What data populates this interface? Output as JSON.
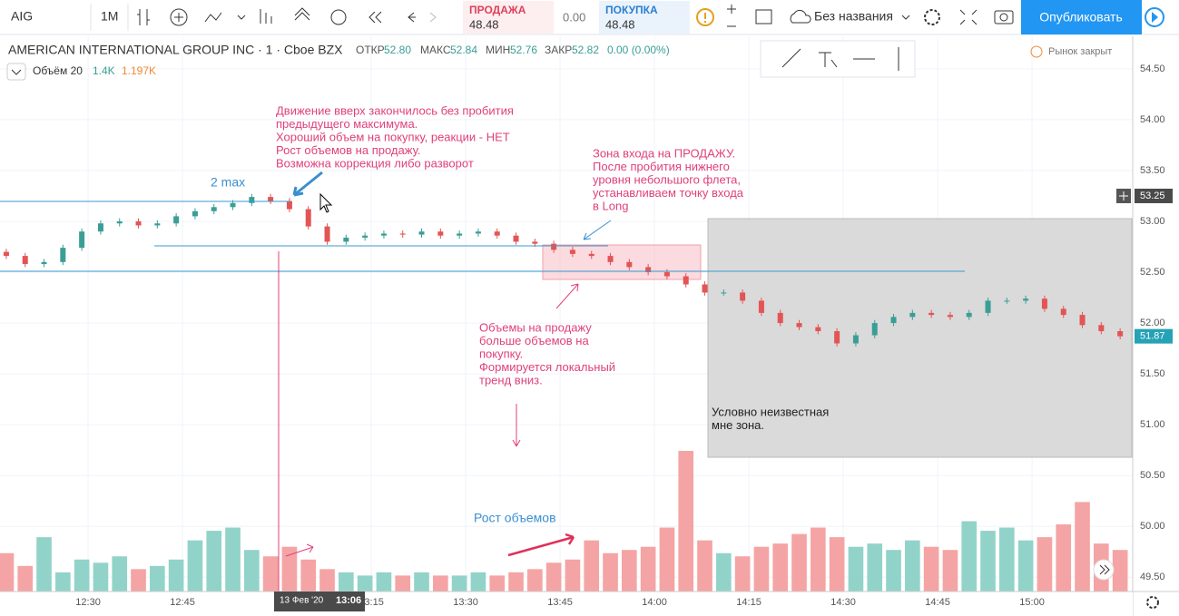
{
  "toolbar": {
    "symbol": "AIG",
    "interval": "1М",
    "sell_label": "ПРОДАЖА",
    "sell_price": "48.48",
    "spread": "0.00",
    "buy_label": "ПОКУПКА",
    "buy_price": "48.48",
    "layout_name": "Без названия",
    "publish": "Опубликовать"
  },
  "legend": {
    "instrument": "AMERICAN INTERNATIONAL GROUP INC · 1 · Cboe BZX",
    "open_label": "ОТКР",
    "open": "52.80",
    "high_label": "МАКС",
    "high": "52.84",
    "low_label": "МИН",
    "low": "52.76",
    "close_label": "ЗАКР",
    "close": "52.82",
    "change": "0.00 (0.00%)",
    "volume_label": "Объём 20",
    "volume_value": "1.4K",
    "volume_ma": "1.197K"
  },
  "market_status": "Рынок закрыт",
  "chart_data": {
    "type": "candlestick",
    "x": [
      737,
      740,
      743,
      746,
      749,
      752,
      755,
      758,
      761,
      764,
      767,
      770,
      773,
      776,
      779,
      782,
      785,
      788,
      791,
      794,
      797,
      800,
      803,
      806,
      809,
      812,
      815,
      818,
      821,
      824,
      827,
      830,
      833,
      836,
      839,
      842,
      845,
      848,
      851,
      854,
      857,
      860,
      863,
      866,
      869,
      872,
      875,
      878,
      881,
      884,
      887,
      890,
      893,
      896,
      899,
      902,
      905,
      908,
      911,
      914
    ],
    "open": [
      52.7,
      52.66,
      52.58,
      52.6,
      52.74,
      52.9,
      52.98,
      53.0,
      52.96,
      52.98,
      53.05,
      53.1,
      53.14,
      53.18,
      53.24,
      53.2,
      53.12,
      52.95,
      52.8,
      52.84,
      52.86,
      52.88,
      52.87,
      52.9,
      52.86,
      52.88,
      52.9,
      52.86,
      52.8,
      52.78,
      52.72,
      52.68,
      52.66,
      52.6,
      52.55,
      52.5,
      52.46,
      52.38,
      52.3,
      52.3,
      52.22,
      52.1,
      52.0,
      51.96,
      51.92,
      51.8,
      51.88,
      52.0,
      52.06,
      52.1,
      52.08,
      52.06,
      52.1,
      52.22,
      52.22,
      52.24,
      52.14,
      52.08,
      51.98,
      51.92
    ],
    "high": [
      52.73,
      52.69,
      52.63,
      52.77,
      52.93,
      53.01,
      53.03,
      53.03,
      53.01,
      53.08,
      53.13,
      53.17,
      53.21,
      53.27,
      53.27,
      53.23,
      53.15,
      52.98,
      52.87,
      52.89,
      52.91,
      52.91,
      52.93,
      52.93,
      52.91,
      52.93,
      52.93,
      52.89,
      52.83,
      52.81,
      52.75,
      52.71,
      52.69,
      52.63,
      52.58,
      52.53,
      52.49,
      52.41,
      52.33,
      52.33,
      52.25,
      52.13,
      52.03,
      51.99,
      51.95,
      51.91,
      52.03,
      52.09,
      52.13,
      52.13,
      52.11,
      52.13,
      52.25,
      52.25,
      52.27,
      52.27,
      52.17,
      52.11,
      52.01,
      51.95
    ],
    "low": [
      52.63,
      52.55,
      52.55,
      52.57,
      52.71,
      52.87,
      52.95,
      52.93,
      52.93,
      52.95,
      53.02,
      53.07,
      53.11,
      53.15,
      53.17,
      53.09,
      52.92,
      52.77,
      52.77,
      52.81,
      52.83,
      52.84,
      52.84,
      52.83,
      52.83,
      52.85,
      52.83,
      52.77,
      52.75,
      52.69,
      52.65,
      52.63,
      52.57,
      52.52,
      52.47,
      52.43,
      52.35,
      52.27,
      52.27,
      52.19,
      52.07,
      51.97,
      51.93,
      51.89,
      51.77,
      51.77,
      51.85,
      51.97,
      52.03,
      52.05,
      52.03,
      52.03,
      52.07,
      52.19,
      52.19,
      52.11,
      52.05,
      51.95,
      51.89,
      51.84
    ],
    "close": [
      52.66,
      52.58,
      52.6,
      52.74,
      52.9,
      52.98,
      53.0,
      52.96,
      52.98,
      53.05,
      53.1,
      53.14,
      53.18,
      53.24,
      53.2,
      53.12,
      52.95,
      52.8,
      52.84,
      52.86,
      52.88,
      52.87,
      52.9,
      52.86,
      52.88,
      52.9,
      52.86,
      52.8,
      52.78,
      52.72,
      52.68,
      52.66,
      52.6,
      52.55,
      52.5,
      52.46,
      52.38,
      52.3,
      52.3,
      52.22,
      52.1,
      52.0,
      51.96,
      51.92,
      51.8,
      51.88,
      52.0,
      52.06,
      52.1,
      52.08,
      52.06,
      52.1,
      52.22,
      52.22,
      52.24,
      52.14,
      52.08,
      51.98,
      51.92,
      51.87
    ],
    "volume": {
      "values": [
        1.2,
        0.8,
        1.7,
        0.6,
        1.0,
        0.9,
        1.1,
        0.7,
        0.8,
        1.0,
        1.6,
        1.9,
        2.0,
        1.3,
        1.1,
        1.4,
        1.0,
        0.7,
        0.6,
        0.5,
        0.6,
        0.5,
        0.6,
        0.5,
        0.5,
        0.6,
        0.5,
        0.6,
        0.7,
        0.9,
        1.0,
        1.6,
        1.2,
        1.3,
        1.4,
        2.0,
        4.4,
        1.6,
        1.2,
        1.1,
        1.4,
        1.5,
        1.8,
        2.0,
        1.7,
        1.4,
        1.5,
        1.3,
        1.6,
        1.4,
        1.3,
        2.2,
        1.9,
        2.0,
        1.6,
        1.7,
        2.1,
        2.8,
        1.5,
        1.3
      ],
      "up_color": "#92d3c9",
      "down_color": "#f4a4a4"
    },
    "up_color": "#3a9e96",
    "down_color": "#e35454",
    "xlim": [
      736,
      916
    ],
    "xticks": [
      {
        "value": 750,
        "label": "12:30"
      },
      {
        "value": 765,
        "label": "12:45"
      },
      {
        "value": 795,
        "label": "13:15"
      },
      {
        "value": 810,
        "label": "13:30"
      },
      {
        "value": 825,
        "label": "13:45"
      },
      {
        "value": 840,
        "label": "14:00"
      },
      {
        "value": 855,
        "label": "14:15"
      },
      {
        "value": 870,
        "label": "14:30"
      },
      {
        "value": 885,
        "label": "14:45"
      },
      {
        "value": 900,
        "label": "15:00"
      }
    ],
    "ylim": [
      49.36,
      54.82
    ],
    "yticks": [
      {
        "value": 54.5,
        "label": "54.50"
      },
      {
        "value": 54,
        "label": "54.00"
      },
      {
        "value": 53.5,
        "label": "53.50"
      },
      {
        "value": 53,
        "label": "53.00"
      },
      {
        "value": 52.5,
        "label": "52.50"
      },
      {
        "value": 52,
        "label": "52.00"
      },
      {
        "value": 51.5,
        "label": "51.50"
      },
      {
        "value": 51,
        "label": "51.00"
      },
      {
        "value": 50.5,
        "label": "50.50"
      },
      {
        "value": 50,
        "label": "50.00"
      },
      {
        "value": 49.5,
        "label": "49.50"
      }
    ],
    "grid": true,
    "last_price": 51.87,
    "crosshair": {
      "price": 53.25,
      "date": "13 Фев '20",
      "time": "13:06"
    },
    "annotations": [
      {
        "lines": [
          "Движение вверх закончилось без пробития",
          "предыдущего максимума.",
          "Хороший объем на покупку, реакции - НЕТ",
          "Рост объемов на продажу.",
          "Возможна коррекция либо разворот"
        ],
        "color": "#e0407a"
      },
      {
        "lines": [
          "2 max"
        ],
        "color": "#3a8fd0"
      },
      {
        "lines": [
          "Зона входа на ПРОДАЖУ.",
          "После пробития нижнего",
          "уровня небольшого флета,",
          "устанавливаем точку входа",
          "в Long"
        ],
        "color": "#e0407a"
      },
      {
        "lines": [
          "Объемы на продажу",
          "больше объемов на",
          "покупку.",
          "Формируется локальный",
          "тренд вниз."
        ],
        "color": "#e0407a"
      },
      {
        "lines": [
          "Условно неизвестная",
          "мне зона."
        ],
        "color": "#222222"
      },
      {
        "lines": [
          "Рост объемов"
        ],
        "color": "#3a8fd0"
      }
    ]
  }
}
